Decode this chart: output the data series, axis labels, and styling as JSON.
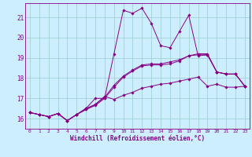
{
  "xlabel": "Windchill (Refroidissement éolien,°C)",
  "background_color": "#cceeff",
  "line_color": "#880088",
  "grid_color": "#99cccc",
  "xlim": [
    -0.5,
    23.5
  ],
  "ylim": [
    15.5,
    21.7
  ],
  "yticks": [
    16,
    17,
    18,
    19,
    20,
    21
  ],
  "xticks": [
    0,
    1,
    2,
    3,
    4,
    5,
    6,
    7,
    8,
    9,
    10,
    11,
    12,
    13,
    14,
    15,
    16,
    17,
    18,
    19,
    20,
    21,
    22,
    23
  ],
  "lines": [
    {
      "x": [
        0,
        1,
        2,
        3,
        4,
        5,
        6,
        7,
        8,
        9,
        10,
        11,
        12,
        13,
        14,
        15,
        16,
        17,
        18,
        19,
        20,
        21,
        22,
        23
      ],
      "y": [
        16.3,
        16.2,
        16.1,
        16.25,
        15.9,
        16.2,
        16.5,
        17.0,
        17.0,
        19.2,
        21.35,
        21.2,
        21.45,
        20.7,
        19.6,
        19.5,
        20.3,
        21.1,
        19.1,
        19.15,
        18.3,
        18.2,
        18.2,
        17.6
      ]
    },
    {
      "x": [
        0,
        1,
        2,
        3,
        4,
        5,
        6,
        7,
        8,
        9,
        10,
        11,
        12,
        13,
        14,
        15,
        16,
        17,
        18,
        19,
        20,
        21,
        22,
        23
      ],
      "y": [
        16.3,
        16.2,
        16.1,
        16.25,
        15.9,
        16.2,
        16.45,
        16.65,
        17.0,
        17.55,
        18.05,
        18.35,
        18.6,
        18.65,
        18.65,
        18.7,
        18.85,
        19.1,
        19.15,
        19.15,
        18.3,
        18.2,
        18.2,
        17.6
      ]
    },
    {
      "x": [
        0,
        1,
        2,
        3,
        4,
        5,
        6,
        7,
        8,
        9,
        10,
        11,
        12,
        13,
        14,
        15,
        16,
        17,
        18,
        19,
        20,
        21,
        22,
        23
      ],
      "y": [
        16.3,
        16.2,
        16.1,
        16.25,
        15.9,
        16.2,
        16.45,
        16.7,
        17.05,
        17.65,
        18.1,
        18.4,
        18.65,
        18.7,
        18.7,
        18.8,
        18.9,
        19.1,
        19.2,
        19.2,
        18.3,
        18.2,
        18.2,
        17.6
      ]
    },
    {
      "x": [
        0,
        1,
        2,
        3,
        4,
        5,
        6,
        7,
        8,
        9,
        10,
        11,
        12,
        13,
        14,
        15,
        16,
        17,
        18,
        19,
        20,
        21,
        22,
        23
      ],
      "y": [
        16.3,
        16.2,
        16.1,
        16.25,
        15.9,
        16.2,
        16.5,
        16.7,
        17.1,
        16.95,
        17.15,
        17.3,
        17.5,
        17.6,
        17.7,
        17.75,
        17.85,
        17.95,
        18.05,
        17.6,
        17.7,
        17.55,
        17.55,
        17.6
      ]
    }
  ]
}
